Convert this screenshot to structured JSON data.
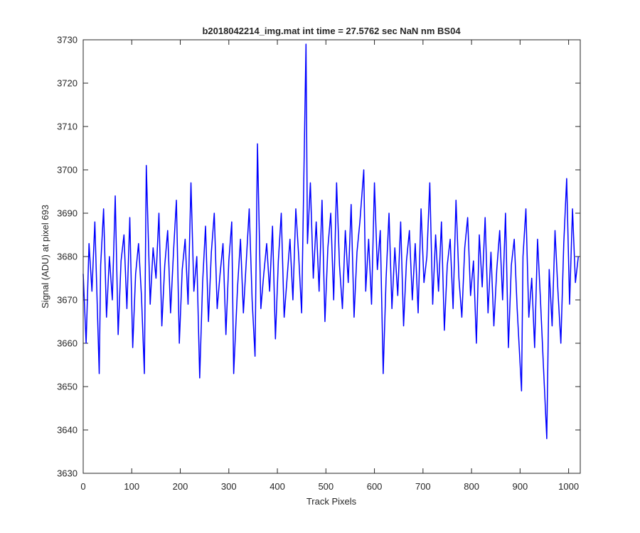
{
  "chart_data": {
    "type": "line",
    "title": "b2018042214_img.mat int time = 27.5762 sec  NaN nm BS04",
    "x_label": "Track Pixels",
    "y_label": "Signal (ADU) at pixel 693",
    "color": "#0000ff",
    "xlim": [
      0,
      1024
    ],
    "ylim": [
      3630,
      3730
    ],
    "xticks": [
      0,
      100,
      200,
      300,
      400,
      500,
      600,
      700,
      800,
      900,
      1000
    ],
    "yticks": [
      3630,
      3640,
      3650,
      3660,
      3670,
      3680,
      3690,
      3700,
      3710,
      3720,
      3730
    ],
    "grid": false,
    "x": [
      0,
      6,
      12,
      18,
      24,
      33,
      36,
      42,
      48,
      54,
      60,
      66,
      72,
      78,
      84,
      90,
      96,
      102,
      108,
      114,
      120,
      126,
      130,
      138,
      144,
      150,
      156,
      162,
      168,
      174,
      180,
      186,
      192,
      198,
      204,
      210,
      216,
      222,
      228,
      234,
      240,
      246,
      252,
      258,
      264,
      270,
      276,
      282,
      288,
      294,
      300,
      306,
      310,
      318,
      324,
      330,
      336,
      342,
      348,
      354,
      359,
      366,
      372,
      378,
      384,
      390,
      396,
      402,
      408,
      414,
      420,
      426,
      432,
      438,
      444,
      450,
      459,
      462,
      468,
      474,
      480,
      486,
      492,
      498,
      504,
      510,
      516,
      522,
      528,
      534,
      540,
      546,
      552,
      558,
      564,
      570,
      578,
      582,
      588,
      594,
      600,
      606,
      612,
      618,
      624,
      630,
      636,
      642,
      648,
      654,
      660,
      666,
      672,
      678,
      684,
      690,
      696,
      702,
      708,
      714,
      720,
      726,
      732,
      738,
      744,
      750,
      756,
      762,
      768,
      774,
      780,
      786,
      792,
      798,
      804,
      810,
      816,
      822,
      828,
      834,
      840,
      846,
      852,
      858,
      864,
      870,
      876,
      882,
      888,
      894,
      903,
      906,
      912,
      918,
      924,
      930,
      936,
      942,
      948,
      955,
      960,
      966,
      972,
      978,
      984,
      990,
      996,
      1002,
      1008,
      1014,
      1020
    ],
    "values": [
      3676,
      3660,
      3683,
      3672,
      3688,
      3653,
      3678,
      3691,
      3666,
      3680,
      3670,
      3694,
      3662,
      3679,
      3685,
      3668,
      3689,
      3659,
      3676,
      3683,
      3671,
      3653,
      3701,
      3669,
      3682,
      3675,
      3690,
      3664,
      3678,
      3686,
      3667,
      3681,
      3693,
      3660,
      3677,
      3684,
      3669,
      3697,
      3672,
      3680,
      3652,
      3674,
      3687,
      3665,
      3681,
      3690,
      3668,
      3676,
      3683,
      3662,
      3679,
      3688,
      3653,
      3673,
      3684,
      3667,
      3679,
      3691,
      3670,
      3657,
      3706,
      3668,
      3676,
      3683,
      3672,
      3687,
      3661,
      3679,
      3690,
      3666,
      3675,
      3684,
      3670,
      3691,
      3680,
      3667,
      3729,
      3683,
      3697,
      3675,
      3688,
      3672,
      3693,
      3665,
      3682,
      3690,
      3670,
      3697,
      3678,
      3668,
      3686,
      3674,
      3692,
      3666,
      3681,
      3688,
      3700,
      3672,
      3684,
      3669,
      3697,
      3677,
      3686,
      3653,
      3675,
      3690,
      3668,
      3682,
      3671,
      3688,
      3664,
      3679,
      3686,
      3670,
      3683,
      3667,
      3691,
      3674,
      3680,
      3697,
      3669,
      3685,
      3672,
      3688,
      3663,
      3678,
      3684,
      3668,
      3693,
      3675,
      3666,
      3682,
      3689,
      3671,
      3679,
      3660,
      3685,
      3673,
      3689,
      3667,
      3681,
      3664,
      3677,
      3686,
      3670,
      3690,
      3659,
      3678,
      3684,
      3668,
      3649,
      3680,
      3691,
      3666,
      3675,
      3659,
      3684,
      3670,
      3655,
      3638,
      3677,
      3664,
      3686,
      3672,
      3660,
      3683,
      3698,
      3669,
      3691,
      3674,
      3680
    ]
  }
}
